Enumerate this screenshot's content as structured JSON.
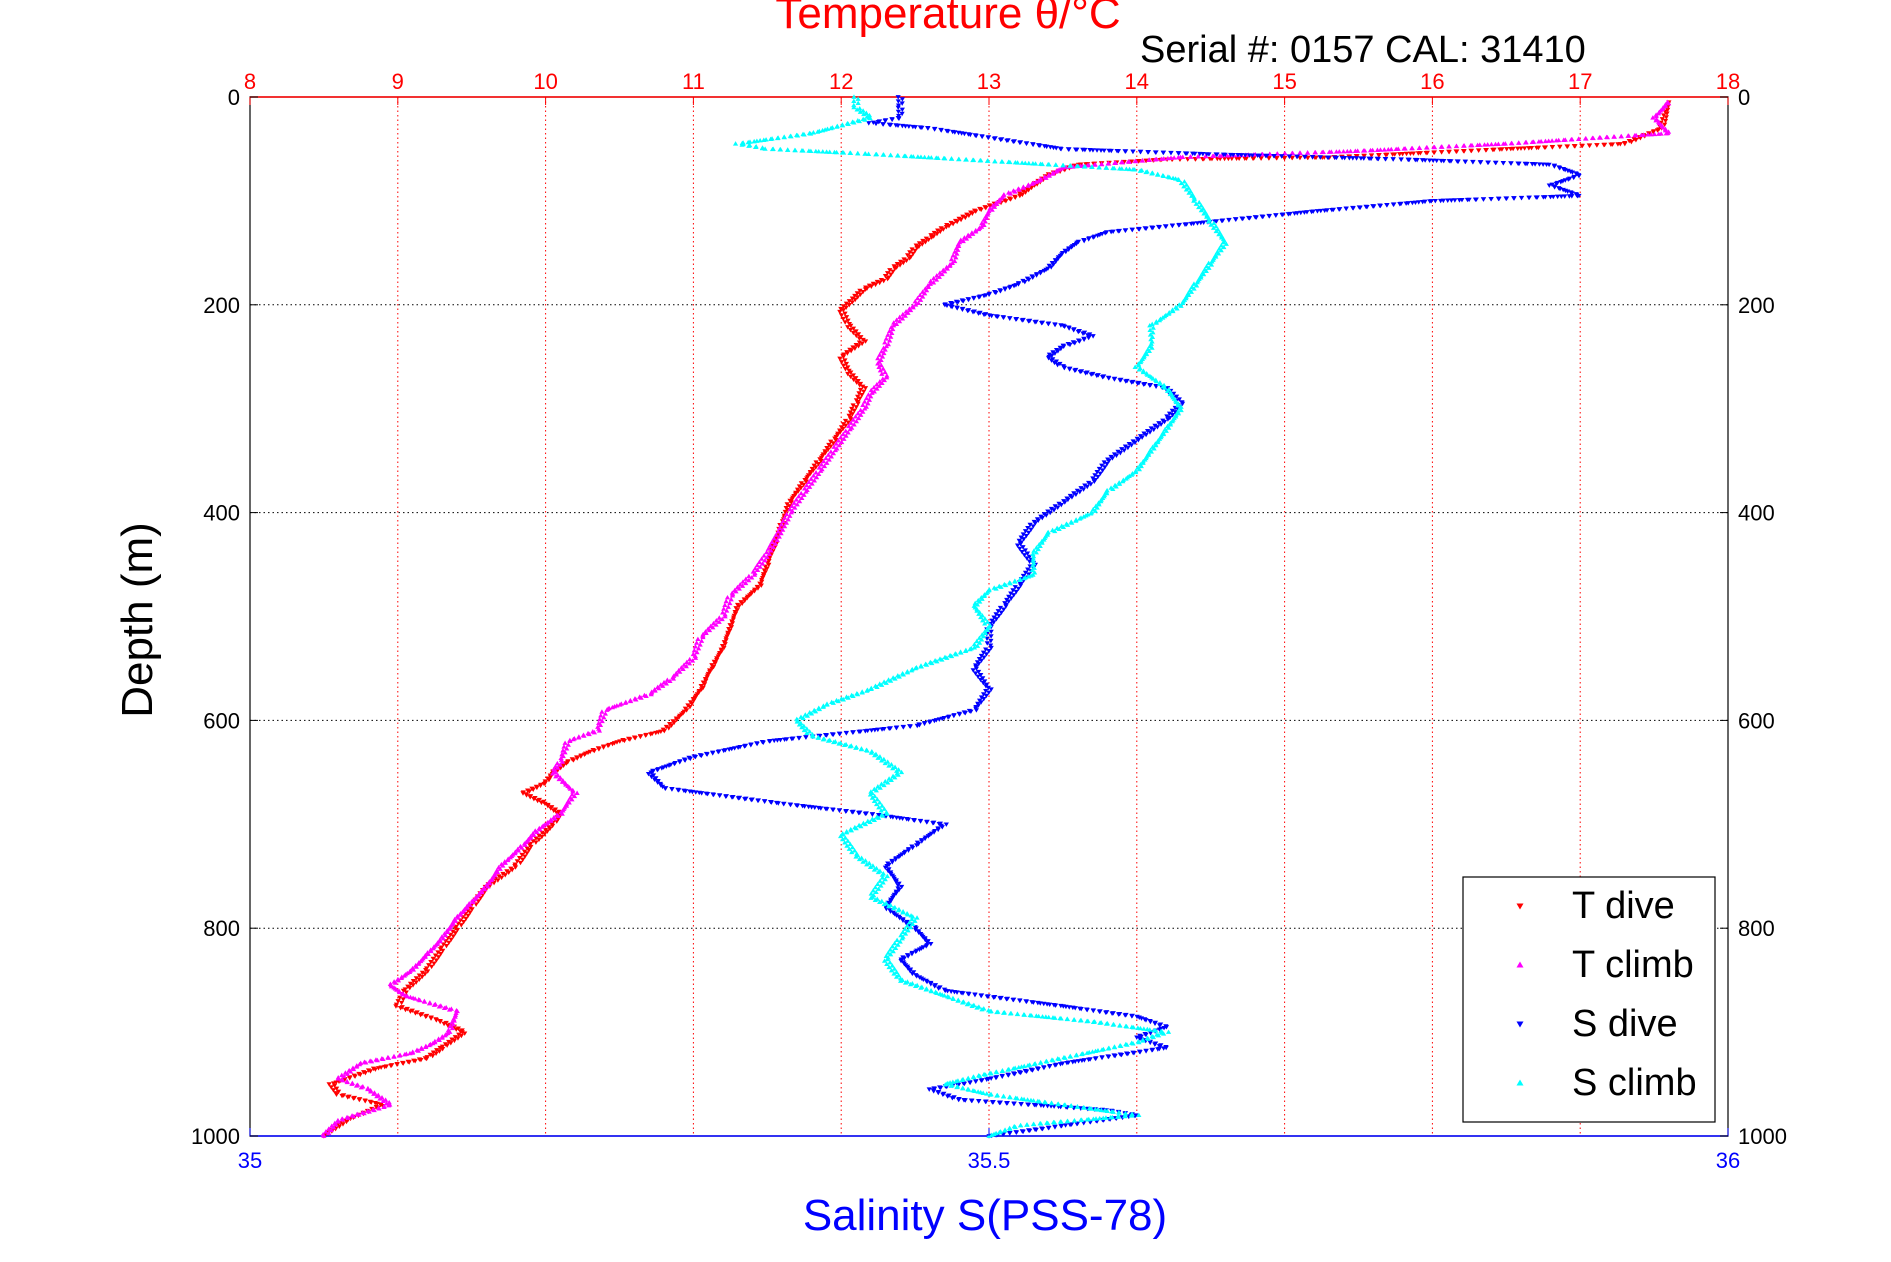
{
  "chart_data": {
    "type": "scatter",
    "title": "Temperature θ/°C",
    "subtitle": "Serial #: 0157  CAL: 31410",
    "xlabel": "Salinity S(PSS-78)",
    "ylabel": "Depth (m)",
    "grid": true,
    "legend_position": "bottom-right",
    "colors": {
      "temperature_axis": "#ff0000",
      "salinity_axis": "#0000ff",
      "frame": "#000000",
      "grid": "#000000"
    },
    "axes": {
      "temperature": {
        "range": [
          8,
          18
        ],
        "ticks": [
          "8",
          "9",
          "10",
          "11",
          "12",
          "13",
          "14",
          "15",
          "16",
          "17",
          "18"
        ]
      },
      "salinity": {
        "range": [
          35,
          36
        ],
        "ticks": [
          "35",
          "35.5",
          "36"
        ]
      },
      "depth": {
        "range": [
          0,
          1000
        ],
        "reversed": true,
        "ticks": [
          "0",
          "200",
          "400",
          "600",
          "800",
          "1000"
        ]
      }
    },
    "series": [
      {
        "name": "T dive",
        "axis": "temperature",
        "color": "#ff0000",
        "marker": "triangle-down",
        "points": [
          [
            17.6,
            5
          ],
          [
            17.55,
            30
          ],
          [
            17.3,
            45
          ],
          [
            16.5,
            50
          ],
          [
            15.3,
            58
          ],
          [
            14.2,
            60
          ],
          [
            13.6,
            65
          ],
          [
            13.4,
            75
          ],
          [
            13.3,
            85
          ],
          [
            13.2,
            95
          ],
          [
            13.0,
            105
          ],
          [
            12.9,
            110
          ],
          [
            12.8,
            118
          ],
          [
            12.7,
            125
          ],
          [
            12.6,
            135
          ],
          [
            12.5,
            145
          ],
          [
            12.45,
            155
          ],
          [
            12.35,
            165
          ],
          [
            12.3,
            175
          ],
          [
            12.15,
            185
          ],
          [
            12.08,
            195
          ],
          [
            12.0,
            205
          ],
          [
            12.05,
            220
          ],
          [
            12.15,
            235
          ],
          [
            12.0,
            250
          ],
          [
            12.05,
            265
          ],
          [
            12.15,
            280
          ],
          [
            12.1,
            295
          ],
          [
            12.05,
            310
          ],
          [
            11.95,
            330
          ],
          [
            11.85,
            350
          ],
          [
            11.75,
            370
          ],
          [
            11.65,
            390
          ],
          [
            11.6,
            410
          ],
          [
            11.55,
            430
          ],
          [
            11.5,
            450
          ],
          [
            11.45,
            470
          ],
          [
            11.3,
            490
          ],
          [
            11.25,
            510
          ],
          [
            11.2,
            530
          ],
          [
            11.12,
            550
          ],
          [
            11.05,
            570
          ],
          [
            10.95,
            590
          ],
          [
            10.8,
            610
          ],
          [
            10.5,
            620
          ],
          [
            10.3,
            630
          ],
          [
            10.15,
            640
          ],
          [
            10.05,
            650
          ],
          [
            10.0,
            660
          ],
          [
            9.85,
            670
          ],
          [
            10.0,
            680
          ],
          [
            10.1,
            690
          ],
          [
            10.05,
            700
          ],
          [
            9.9,
            720
          ],
          [
            9.8,
            740
          ],
          [
            9.6,
            760
          ],
          [
            9.5,
            780
          ],
          [
            9.4,
            800
          ],
          [
            9.3,
            820
          ],
          [
            9.2,
            840
          ],
          [
            9.05,
            860
          ],
          [
            9.0,
            875
          ],
          [
            9.3,
            890
          ],
          [
            9.45,
            900
          ],
          [
            9.3,
            915
          ],
          [
            9.2,
            925
          ],
          [
            8.85,
            935
          ],
          [
            8.55,
            950
          ],
          [
            8.6,
            960
          ],
          [
            8.9,
            970
          ],
          [
            8.65,
            985
          ],
          [
            8.5,
            1000
          ]
        ]
      },
      {
        "name": "T climb",
        "axis": "temperature",
        "color": "#ff00ff",
        "marker": "triangle-up",
        "points": [
          [
            17.6,
            5
          ],
          [
            17.5,
            20
          ],
          [
            17.6,
            35
          ],
          [
            16.5,
            45
          ],
          [
            15.5,
            52
          ],
          [
            14.3,
            58
          ],
          [
            13.5,
            68
          ],
          [
            13.35,
            80
          ],
          [
            13.1,
            95
          ],
          [
            13.0,
            110
          ],
          [
            12.95,
            125
          ],
          [
            12.8,
            140
          ],
          [
            12.75,
            160
          ],
          [
            12.6,
            180
          ],
          [
            12.5,
            200
          ],
          [
            12.35,
            220
          ],
          [
            12.3,
            240
          ],
          [
            12.25,
            255
          ],
          [
            12.3,
            270
          ],
          [
            12.2,
            285
          ],
          [
            12.15,
            300
          ],
          [
            12.05,
            320
          ],
          [
            11.95,
            340
          ],
          [
            11.85,
            360
          ],
          [
            11.75,
            380
          ],
          [
            11.65,
            400
          ],
          [
            11.58,
            420
          ],
          [
            11.5,
            440
          ],
          [
            11.4,
            460
          ],
          [
            11.25,
            480
          ],
          [
            11.2,
            500
          ],
          [
            11.05,
            520
          ],
          [
            11.0,
            540
          ],
          [
            10.85,
            560
          ],
          [
            10.7,
            575
          ],
          [
            10.4,
            590
          ],
          [
            10.35,
            610
          ],
          [
            10.15,
            620
          ],
          [
            10.1,
            640
          ],
          [
            10.05,
            650
          ],
          [
            10.2,
            670
          ],
          [
            10.1,
            690
          ],
          [
            9.95,
            705
          ],
          [
            9.85,
            720
          ],
          [
            9.7,
            740
          ],
          [
            9.6,
            760
          ],
          [
            9.5,
            775
          ],
          [
            9.4,
            790
          ],
          [
            9.3,
            810
          ],
          [
            9.2,
            825
          ],
          [
            9.1,
            840
          ],
          [
            8.95,
            855
          ],
          [
            9.05,
            865
          ],
          [
            9.4,
            880
          ],
          [
            9.35,
            900
          ],
          [
            9.25,
            910
          ],
          [
            9.1,
            920
          ],
          [
            8.75,
            930
          ],
          [
            8.6,
            945
          ],
          [
            8.8,
            955
          ],
          [
            8.95,
            970
          ],
          [
            8.6,
            985
          ],
          [
            8.5,
            1000
          ]
        ]
      },
      {
        "name": "S dive",
        "axis": "salinity",
        "color": "#0000ff",
        "marker": "triangle-down",
        "points": [
          [
            35.44,
            0
          ],
          [
            35.44,
            10
          ],
          [
            35.44,
            20
          ],
          [
            35.42,
            25
          ],
          [
            35.46,
            30
          ],
          [
            35.55,
            50
          ],
          [
            35.65,
            55
          ],
          [
            35.78,
            60
          ],
          [
            35.88,
            65
          ],
          [
            35.9,
            75
          ],
          [
            35.88,
            85
          ],
          [
            35.9,
            95
          ],
          [
            35.8,
            100
          ],
          [
            35.72,
            110
          ],
          [
            35.65,
            120
          ],
          [
            35.58,
            130
          ],
          [
            35.56,
            140
          ],
          [
            35.55,
            150
          ],
          [
            35.54,
            165
          ],
          [
            35.52,
            180
          ],
          [
            35.5,
            190
          ],
          [
            35.47,
            200
          ],
          [
            35.5,
            210
          ],
          [
            35.55,
            220
          ],
          [
            35.57,
            230
          ],
          [
            35.55,
            240
          ],
          [
            35.54,
            250
          ],
          [
            35.55,
            260
          ],
          [
            35.58,
            270
          ],
          [
            35.62,
            280
          ],
          [
            35.63,
            295
          ],
          [
            35.62,
            310
          ],
          [
            35.6,
            330
          ],
          [
            35.58,
            350
          ],
          [
            35.57,
            370
          ],
          [
            35.55,
            390
          ],
          [
            35.53,
            410
          ],
          [
            35.52,
            430
          ],
          [
            35.53,
            450
          ],
          [
            35.52,
            470
          ],
          [
            35.51,
            490
          ],
          [
            35.5,
            510
          ],
          [
            35.5,
            530
          ],
          [
            35.49,
            550
          ],
          [
            35.5,
            570
          ],
          [
            35.49,
            590
          ],
          [
            35.45,
            605
          ],
          [
            35.35,
            620
          ],
          [
            35.3,
            635
          ],
          [
            35.27,
            650
          ],
          [
            35.28,
            665
          ],
          [
            35.36,
            680
          ],
          [
            35.42,
            690
          ],
          [
            35.47,
            700
          ],
          [
            35.45,
            720
          ],
          [
            35.43,
            740
          ],
          [
            35.44,
            760
          ],
          [
            35.43,
            780
          ],
          [
            35.45,
            800
          ],
          [
            35.46,
            815
          ],
          [
            35.44,
            830
          ],
          [
            35.45,
            845
          ],
          [
            35.47,
            860
          ],
          [
            35.55,
            875
          ],
          [
            35.6,
            885
          ],
          [
            35.62,
            895
          ],
          [
            35.6,
            905
          ],
          [
            35.62,
            915
          ],
          [
            35.55,
            930
          ],
          [
            35.5,
            945
          ],
          [
            35.46,
            955
          ],
          [
            35.48,
            965
          ],
          [
            35.58,
            975
          ],
          [
            35.6,
            980
          ],
          [
            35.55,
            990
          ],
          [
            35.5,
            1000
          ]
        ]
      },
      {
        "name": "S climb",
        "axis": "salinity",
        "color": "#00ffff",
        "marker": "triangle-up",
        "points": [
          [
            35.41,
            0
          ],
          [
            35.41,
            10
          ],
          [
            35.42,
            20
          ],
          [
            35.38,
            35
          ],
          [
            35.33,
            45
          ],
          [
            35.35,
            50
          ],
          [
            35.42,
            55
          ],
          [
            35.6,
            70
          ],
          [
            35.63,
            80
          ],
          [
            35.64,
            100
          ],
          [
            35.65,
            120
          ],
          [
            35.66,
            140
          ],
          [
            35.65,
            160
          ],
          [
            35.64,
            180
          ],
          [
            35.63,
            200
          ],
          [
            35.61,
            220
          ],
          [
            35.61,
            240
          ],
          [
            35.6,
            260
          ],
          [
            35.62,
            280
          ],
          [
            35.63,
            300
          ],
          [
            35.62,
            320
          ],
          [
            35.61,
            340
          ],
          [
            35.6,
            360
          ],
          [
            35.58,
            380
          ],
          [
            35.57,
            400
          ],
          [
            35.54,
            420
          ],
          [
            35.53,
            440
          ],
          [
            35.53,
            460
          ],
          [
            35.5,
            475
          ],
          [
            35.49,
            490
          ],
          [
            35.5,
            510
          ],
          [
            35.49,
            530
          ],
          [
            35.45,
            550
          ],
          [
            35.42,
            570
          ],
          [
            35.39,
            585
          ],
          [
            35.37,
            600
          ],
          [
            35.38,
            615
          ],
          [
            35.42,
            630
          ],
          [
            35.44,
            650
          ],
          [
            35.42,
            670
          ],
          [
            35.43,
            690
          ],
          [
            35.4,
            710
          ],
          [
            35.41,
            730
          ],
          [
            35.43,
            750
          ],
          [
            35.42,
            770
          ],
          [
            35.45,
            790
          ],
          [
            35.44,
            810
          ],
          [
            35.43,
            830
          ],
          [
            35.44,
            850
          ],
          [
            35.5,
            880
          ],
          [
            35.57,
            890
          ],
          [
            35.62,
            900
          ],
          [
            35.6,
            910
          ],
          [
            35.55,
            925
          ],
          [
            35.5,
            940
          ],
          [
            35.47,
            950
          ],
          [
            35.5,
            960
          ],
          [
            35.55,
            970
          ],
          [
            35.6,
            980
          ],
          [
            35.52,
            990
          ],
          [
            35.5,
            1000
          ]
        ]
      }
    ]
  }
}
